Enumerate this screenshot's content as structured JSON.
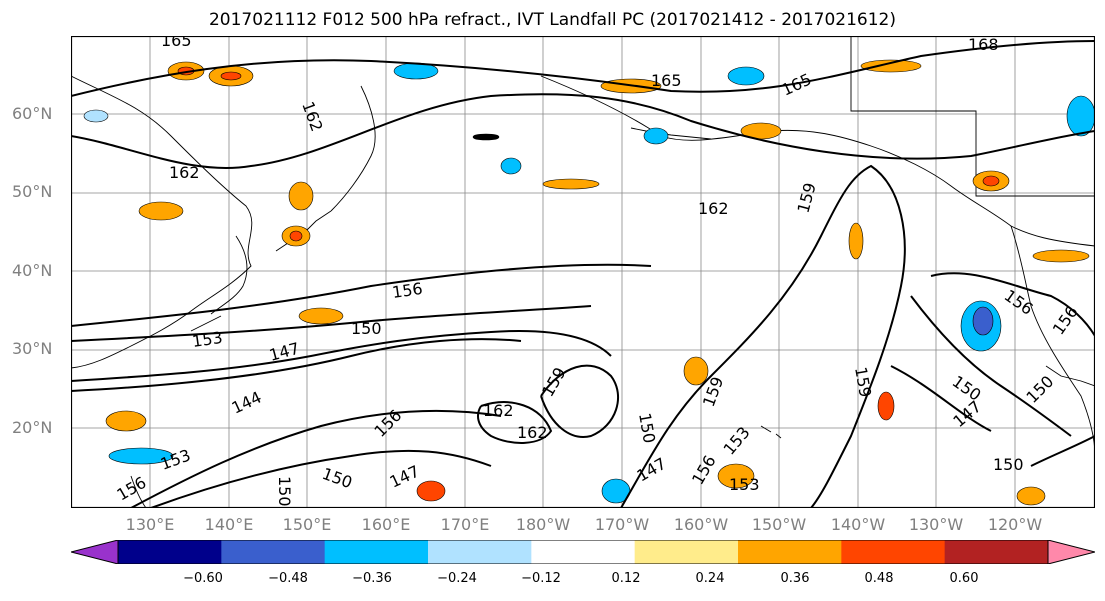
{
  "title": "2017021112 F012 500 hPa refract., IVT Landfall PC (2017021412 - 2017021612)",
  "lat_labels": [
    "60°N",
    "50°N",
    "40°N",
    "30°N",
    "20°N"
  ],
  "lon_labels": [
    "130°E",
    "140°E",
    "150°E",
    "160°E",
    "170°E",
    "180°W",
    "170°W",
    "160°W",
    "150°W",
    "140°W",
    "130°W",
    "120°W"
  ],
  "contour_labels": [
    "165",
    "162",
    "165",
    "165",
    "168",
    "162",
    "162",
    "159",
    "156",
    "153",
    "150",
    "147",
    "144",
    "156",
    "162",
    "159",
    "162",
    "150",
    "147",
    "159",
    "153",
    "150",
    "147",
    "150",
    "153",
    "156",
    "150",
    "150",
    "156",
    "147",
    "156",
    "150",
    "153",
    "156",
    "159"
  ],
  "colorbar": {
    "ticks": [
      "−0.60",
      "−0.48",
      "−0.36",
      "−0.24",
      "−0.12",
      "0.12",
      "0.24",
      "0.36",
      "0.48",
      "0.60"
    ],
    "colors": [
      "#9932cc",
      "#00008b",
      "#3a5fcd",
      "#00bfff",
      "#b0e2ff",
      "#ffffff",
      "#ffec8b",
      "#ffa500",
      "#ff4500",
      "#b22222",
      "#ff88aa"
    ]
  }
}
